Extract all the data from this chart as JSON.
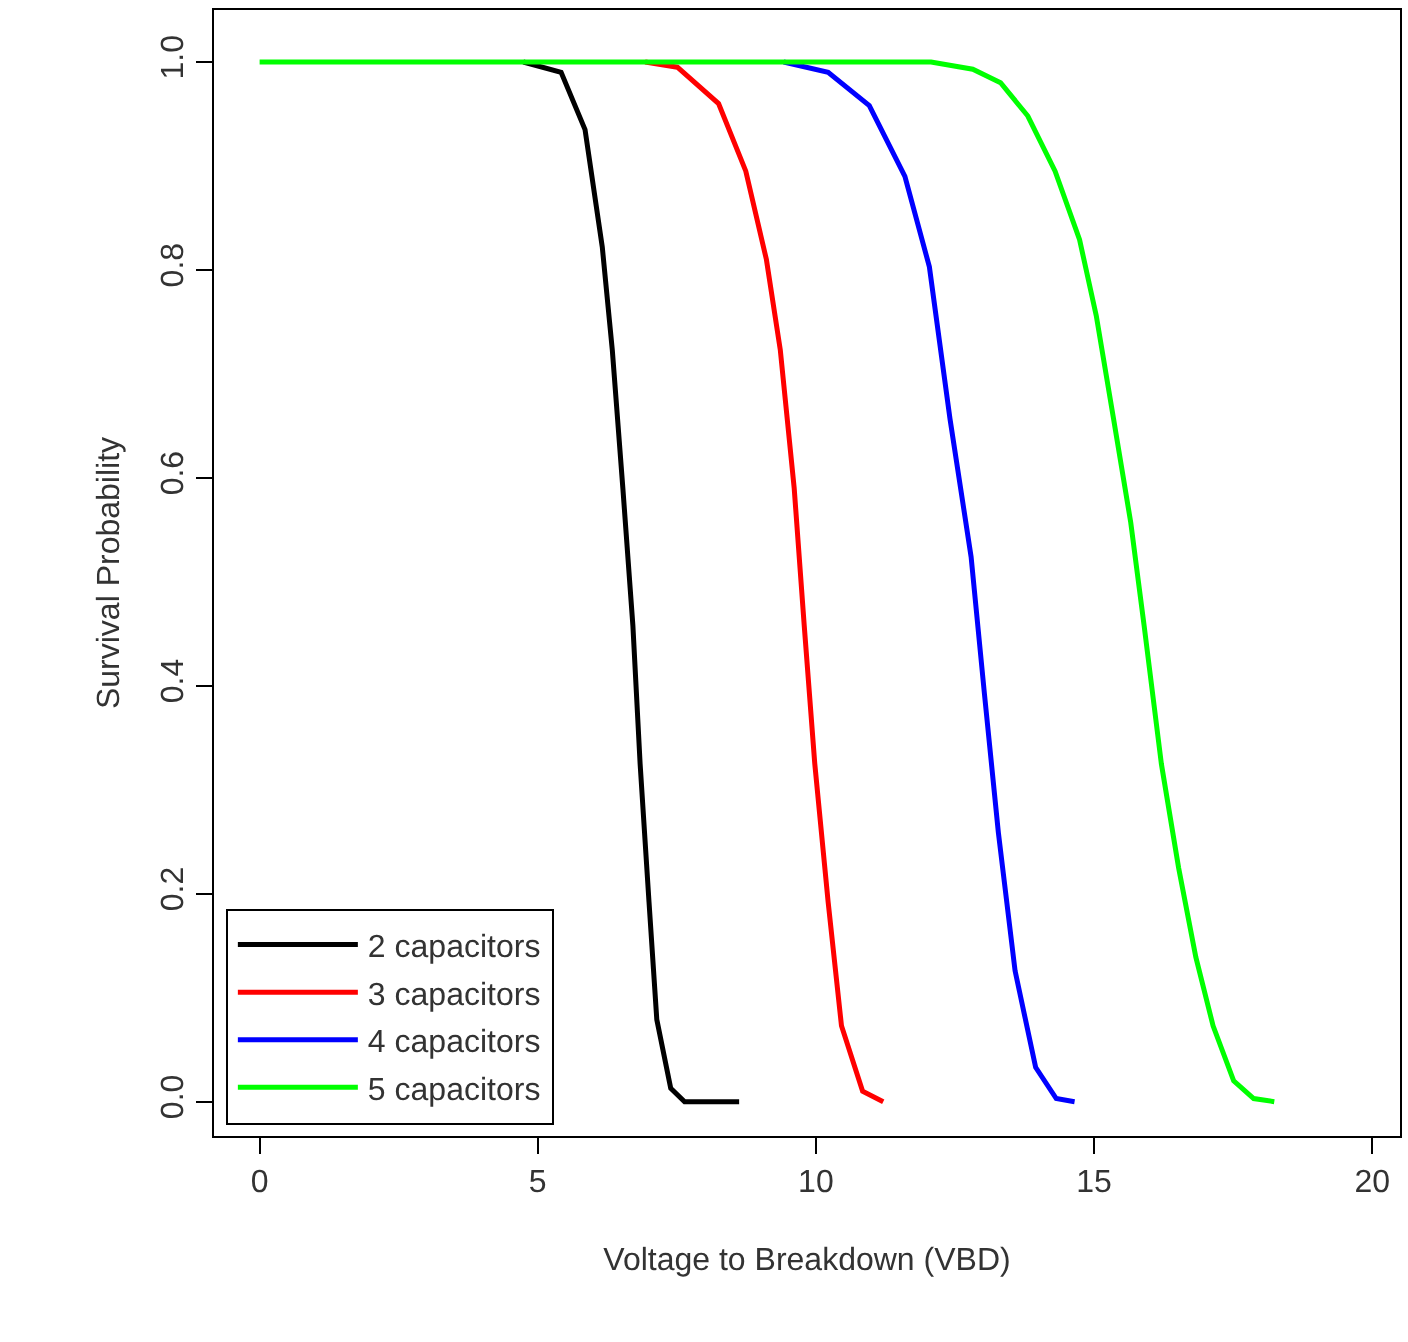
{
  "chart_data": {
    "type": "line",
    "xlabel": "Voltage to Breakdown (VBD)",
    "ylabel": "Survival Probability",
    "xlim": [
      -0.82,
      20.5
    ],
    "xticks": [
      0,
      5,
      10,
      15,
      20
    ],
    "ylim": [
      -0.033,
      1.05
    ],
    "yticks": [
      {
        "value": 0,
        "label": "0.0"
      },
      0.2,
      0.4,
      0.6,
      0.8,
      {
        "value": 1,
        "label": "1.0"
      }
    ],
    "legend": "bottom left",
    "marker": "none",
    "line_style": "solid",
    "series": [
      {
        "name": "2 capacitors",
        "color": "#000000",
        "x": [
          4.74,
          5.42,
          5.85,
          6.16,
          6.34,
          6.53,
          6.71,
          6.84,
          7.0,
          7.14,
          7.39,
          7.64,
          8.62
        ],
        "values": [
          1.0,
          0.99,
          0.935,
          0.822,
          0.723,
          0.59,
          0.458,
          0.325,
          0.192,
          0.079,
          0.013,
          0.0,
          0.0
        ]
      },
      {
        "name": "3 capacitors",
        "color": "#ff0000",
        "x": [
          6.93,
          7.51,
          8.25,
          8.74,
          9.11,
          9.36,
          9.61,
          9.79,
          9.98,
          10.22,
          10.46,
          10.84,
          11.21
        ],
        "values": [
          1.0,
          0.995,
          0.96,
          0.895,
          0.81,
          0.723,
          0.59,
          0.458,
          0.325,
          0.192,
          0.073,
          0.01,
          0.0
        ]
      },
      {
        "name": "4 capacitors",
        "color": "#0000ff",
        "x": [
          9.42,
          10.22,
          10.96,
          11.6,
          12.04,
          12.41,
          12.79,
          13.03,
          13.28,
          13.58,
          13.95,
          14.32,
          14.65
        ],
        "values": [
          1.0,
          0.99,
          0.958,
          0.89,
          0.803,
          0.657,
          0.524,
          0.392,
          0.259,
          0.126,
          0.033,
          0.003,
          0.0
        ]
      },
      {
        "name": "5 capacitors",
        "color": "#00ff00",
        "x": [
          0.0,
          12.07,
          12.82,
          13.32,
          13.81,
          14.3,
          14.74,
          15.04,
          15.35,
          15.66,
          15.9,
          16.21,
          16.52,
          16.83,
          17.14,
          17.51,
          17.87,
          18.24
        ],
        "values": [
          1.0,
          1.0,
          0.993,
          0.98,
          0.948,
          0.895,
          0.829,
          0.756,
          0.657,
          0.557,
          0.458,
          0.325,
          0.225,
          0.139,
          0.073,
          0.02,
          0.003,
          0.0
        ]
      }
    ]
  }
}
